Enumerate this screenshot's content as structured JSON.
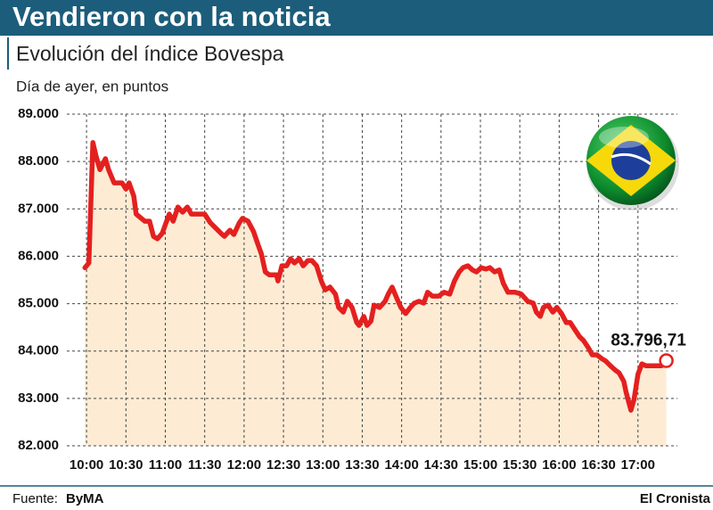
{
  "chart_data": {
    "type": "line",
    "title": "Vendieron con la noticia",
    "subtitle": "Evolución del índice Bovespa",
    "y_label": "Día de ayer, en puntos",
    "source_label": "Fuente:",
    "source": "ByMA",
    "publisher": "El Cronista",
    "color": "#e4201f",
    "fill": "#fdebd4",
    "grid": true,
    "xlim": [
      9.75,
      17.5
    ],
    "ylim": [
      82000,
      89000
    ],
    "xticks": [
      {
        "value": 10,
        "label": "10:00"
      },
      {
        "value": 10.5,
        "label": "10:30"
      },
      {
        "value": 11,
        "label": "11:00"
      },
      {
        "value": 11.5,
        "label": "11:30"
      },
      {
        "value": 12,
        "label": "12:00"
      },
      {
        "value": 12.5,
        "label": "12:30"
      },
      {
        "value": 13,
        "label": "13:00"
      },
      {
        "value": 13.5,
        "label": "13:30"
      },
      {
        "value": 14,
        "label": "14:00"
      },
      {
        "value": 14.5,
        "label": "14:30"
      },
      {
        "value": 15,
        "label": "15:00"
      },
      {
        "value": 15.5,
        "label": "15:30"
      },
      {
        "value": 16,
        "label": "16:00"
      },
      {
        "value": 16.5,
        "label": "16:30"
      },
      {
        "value": 17,
        "label": "17:00"
      }
    ],
    "yticks": [
      {
        "value": 82000,
        "label": "82.000"
      },
      {
        "value": 83000,
        "label": "83.000"
      },
      {
        "value": 84000,
        "label": "84.000"
      },
      {
        "value": 85000,
        "label": "85.000"
      },
      {
        "value": 86000,
        "label": "86.000"
      },
      {
        "value": 87000,
        "label": "87.000"
      },
      {
        "value": 88000,
        "label": "88.000"
      },
      {
        "value": 89000,
        "label": "89.000"
      }
    ],
    "x": [
      9.98,
      10.03,
      10.08,
      10.12,
      10.17,
      10.24,
      10.28,
      10.35,
      10.45,
      10.5,
      10.54,
      10.6,
      10.63,
      10.74,
      10.8,
      10.85,
      10.9,
      10.96,
      11.05,
      11.1,
      11.16,
      11.22,
      11.28,
      11.33,
      11.5,
      11.57,
      11.71,
      11.75,
      11.82,
      11.87,
      11.94,
      11.98,
      12.05,
      12.12,
      12.18,
      12.22,
      12.27,
      12.32,
      12.41,
      12.43,
      12.48,
      12.54,
      12.59,
      12.64,
      12.7,
      12.75,
      12.81,
      12.86,
      12.92,
      12.98,
      13.03,
      13.09,
      13.16,
      13.2,
      13.26,
      13.31,
      13.37,
      13.43,
      13.46,
      13.52,
      13.56,
      13.61,
      13.65,
      13.72,
      13.79,
      13.83,
      13.88,
      13.94,
      13.99,
      14.05,
      14.11,
      14.16,
      14.22,
      14.28,
      14.33,
      14.39,
      14.47,
      14.54,
      14.61,
      14.67,
      14.73,
      14.78,
      14.84,
      14.9,
      14.95,
      15.01,
      15.07,
      15.12,
      15.18,
      15.24,
      15.29,
      15.35,
      15.44,
      15.52,
      15.6,
      15.67,
      15.71,
      15.76,
      15.8,
      15.86,
      15.92,
      15.97,
      16.03,
      16.09,
      16.14,
      16.2,
      16.26,
      16.31,
      16.37,
      16.42,
      16.48,
      16.54,
      16.59,
      16.65,
      16.71,
      16.76,
      16.82,
      16.85,
      16.88,
      16.91,
      16.95,
      17.0,
      17.05,
      17.1,
      17.21,
      17.3,
      17.36
    ],
    "values": [
      85760,
      85860,
      88400,
      88120,
      87830,
      88060,
      87830,
      87550,
      87550,
      87420,
      87550,
      87270,
      86890,
      86740,
      86740,
      86420,
      86370,
      86480,
      86890,
      86740,
      87040,
      86930,
      87040,
      86890,
      86890,
      86710,
      86480,
      86420,
      86550,
      86460,
      86710,
      86800,
      86740,
      86520,
      86230,
      86050,
      85670,
      85610,
      85610,
      85480,
      85800,
      85800,
      85950,
      85860,
      85950,
      85800,
      85910,
      85910,
      85800,
      85480,
      85290,
      85350,
      85200,
      84920,
      84820,
      85050,
      84920,
      84600,
      84540,
      84730,
      84540,
      84630,
      84970,
      84920,
      85050,
      85200,
      85350,
      85110,
      84920,
      84790,
      84920,
      85010,
      85050,
      85010,
      85240,
      85160,
      85160,
      85240,
      85200,
      85480,
      85670,
      85760,
      85800,
      85710,
      85670,
      85760,
      85730,
      85760,
      85670,
      85710,
      85430,
      85240,
      85240,
      85200,
      85050,
      85010,
      84820,
      84730,
      84920,
      84970,
      84820,
      84920,
      84790,
      84600,
      84600,
      84450,
      84300,
      84220,
      84070,
      83920,
      83920,
      83840,
      83790,
      83690,
      83600,
      83540,
      83360,
      83130,
      82940,
      82750,
      82980,
      83510,
      83730,
      83690,
      83690,
      83690,
      83796.71
    ],
    "end_value_label": "83.796,71"
  }
}
